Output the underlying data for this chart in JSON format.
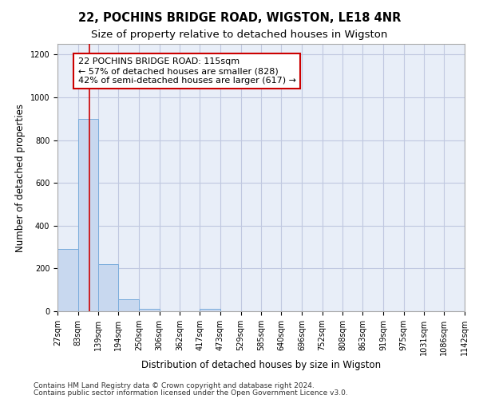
{
  "title": "22, POCHINS BRIDGE ROAD, WIGSTON, LE18 4NR",
  "subtitle": "Size of property relative to detached houses in Wigston",
  "xlabel": "Distribution of detached houses by size in Wigston",
  "ylabel": "Number of detached properties",
  "footnote1": "Contains HM Land Registry data © Crown copyright and database right 2024.",
  "footnote2": "Contains public sector information licensed under the Open Government Licence v3.0.",
  "bin_edges": [
    27,
    83,
    139,
    194,
    250,
    306,
    362,
    417,
    473,
    529,
    585,
    640,
    696,
    752,
    808,
    863,
    919,
    975,
    1031,
    1086,
    1142
  ],
  "bar_heights": [
    290,
    900,
    220,
    55,
    10,
    0,
    0,
    10,
    0,
    0,
    0,
    0,
    0,
    0,
    0,
    0,
    0,
    0,
    0,
    0
  ],
  "bar_color": "#c8d8ef",
  "bar_edgecolor": "#7aacdc",
  "ylim": [
    0,
    1250
  ],
  "yticks": [
    0,
    200,
    400,
    600,
    800,
    1000,
    1200
  ],
  "property_line_x": 115,
  "property_line_color": "#cc0000",
  "annotation_line1": "22 POCHINS BRIDGE ROAD: 115sqm",
  "annotation_line2": "← 57% of detached houses are smaller (828)",
  "annotation_line3": "42% of semi-detached houses are larger (617) →",
  "annotation_box_color": "#cc0000",
  "grid_color": "#c0c8e0",
  "figure_bg": "#ffffff",
  "axes_bg": "#e8eef8",
  "title_fontsize": 10.5,
  "subtitle_fontsize": 9.5,
  "axis_label_fontsize": 8.5,
  "tick_fontsize": 7,
  "annotation_fontsize": 8,
  "footnote_fontsize": 6.5
}
